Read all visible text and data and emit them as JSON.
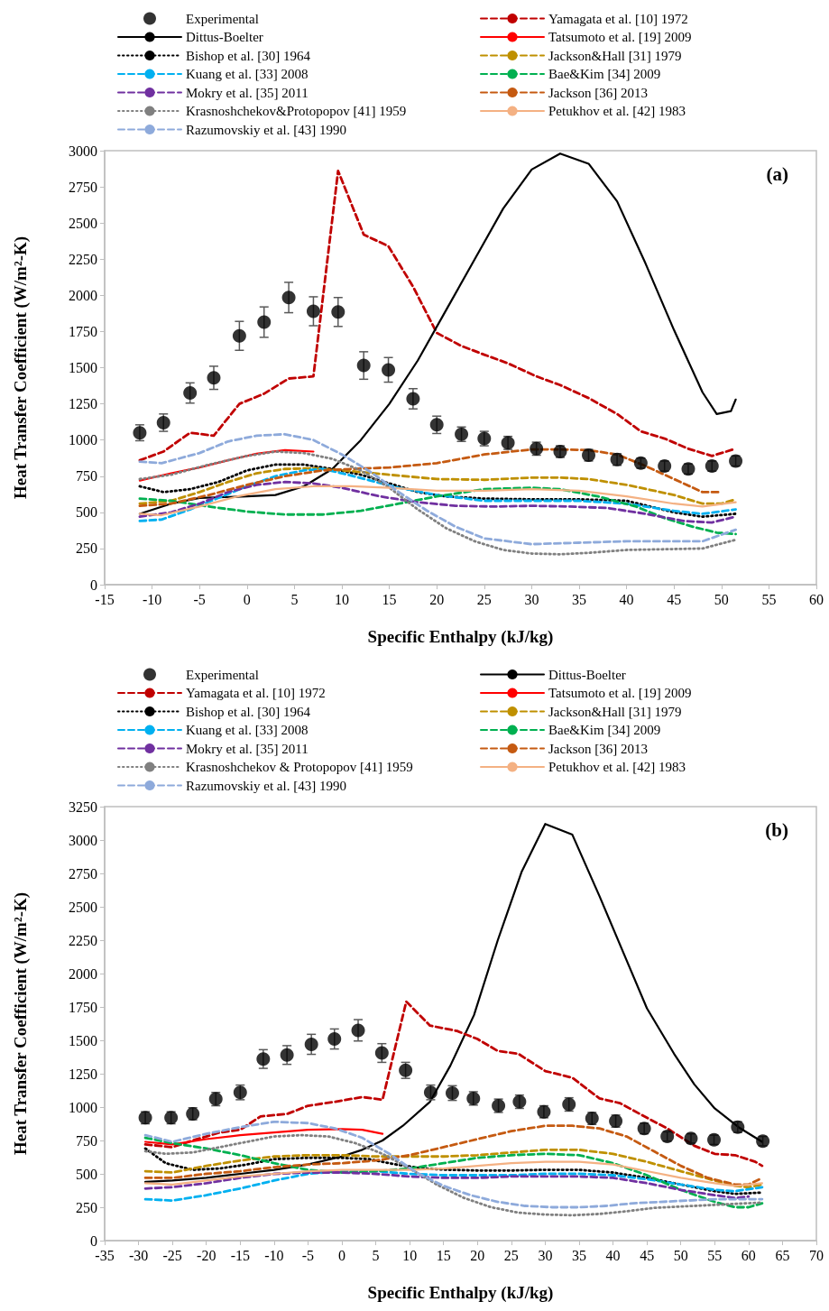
{
  "chart_data": [
    {
      "type": "line",
      "title": "(a)",
      "xlabel": "Specific Enthalpy (kJ/kg)",
      "ylabel": "Heat Transfer Coefficient (W/m²-K)",
      "xlim": [
        -15,
        60
      ],
      "xticks": [
        -15,
        -10,
        -5,
        0,
        5,
        10,
        15,
        20,
        25,
        30,
        35,
        40,
        45,
        50,
        55,
        60
      ],
      "ylim": [
        0,
        3000
      ],
      "yticks": [
        0,
        250,
        500,
        750,
        1000,
        1250,
        1500,
        1750,
        2000,
        2250,
        2500,
        2750,
        3000
      ],
      "grid": false,
      "legend": "top",
      "series": [
        {
          "name": "Experimental",
          "type": "scatter",
          "marker": "circle",
          "color": "#000000",
          "x": [
            -11.3,
            -8.8,
            -6,
            -3.5,
            -0.8,
            1.8,
            4.4,
            7,
            9.6,
            12.3,
            14.9,
            17.5,
            20,
            22.6,
            25,
            27.5,
            30.5,
            33,
            36,
            39,
            41.5,
            44,
            46.5,
            49,
            51.5
          ],
          "values": [
            1050,
            1120,
            1325,
            1430,
            1720,
            1815,
            1985,
            1890,
            1885,
            1515,
            1485,
            1285,
            1105,
            1040,
            1010,
            980,
            940,
            920,
            895,
            865,
            840,
            820,
            800,
            820,
            855
          ],
          "errors": [
            55,
            60,
            70,
            80,
            100,
            105,
            105,
            100,
            100,
            95,
            85,
            70,
            60,
            50,
            50,
            45,
            45,
            40,
            40,
            40,
            35,
            35,
            35,
            35,
            35
          ]
        },
        {
          "name": "Yamagata et al. [10] 1972",
          "color": "#c00000",
          "line_style": "dashed",
          "x": [
            -11.3,
            -8.8,
            -6,
            -3.5,
            -0.8,
            1.8,
            4.4,
            7,
            9.6,
            12.3,
            14.9,
            17.5,
            20,
            22.6,
            25,
            27.5,
            30.5,
            33,
            36,
            39,
            41.5,
            44,
            46.5,
            49,
            51.5
          ],
          "values": [
            860,
            920,
            1050,
            1030,
            1250,
            1320,
            1425,
            1440,
            2860,
            2420,
            2340,
            2060,
            1740,
            1650,
            1590,
            1530,
            1440,
            1380,
            1290,
            1180,
            1060,
            1010,
            940,
            890,
            940
          ]
        },
        {
          "name": "Dittus-Boelter",
          "color": "#000000",
          "line_style": "solid",
          "x": [
            -11.3,
            -8,
            -5,
            0,
            3,
            6,
            9,
            12,
            15,
            18,
            21,
            24,
            27,
            30,
            33,
            36,
            39,
            42,
            45,
            48,
            49.5,
            51,
            51.5
          ],
          "values": [
            490,
            560,
            600,
            610,
            620,
            680,
            800,
            1000,
            1250,
            1550,
            1900,
            2250,
            2600,
            2870,
            2980,
            2910,
            2650,
            2220,
            1760,
            1330,
            1180,
            1200,
            1280
          ]
        },
        {
          "name": "Tatsumoto et al. [19] 2009",
          "color": "#ff0000",
          "line_style": "solid",
          "x": [
            -11.3,
            -8,
            -5,
            -2,
            1,
            4,
            7
          ],
          "values": [
            720,
            770,
            810,
            860,
            905,
            930,
            920
          ]
        },
        {
          "name": "Bishop et al. [30] 1964",
          "color": "#000000",
          "line_style": "dotted",
          "x": [
            -11.3,
            -8.8,
            -6,
            -3,
            0,
            3,
            6,
            9,
            12,
            15,
            18,
            21,
            25,
            30,
            35,
            40,
            45,
            48,
            51.5
          ],
          "values": [
            680,
            640,
            660,
            710,
            790,
            830,
            830,
            800,
            760,
            700,
            640,
            610,
            595,
            590,
            590,
            580,
            500,
            470,
            490
          ]
        },
        {
          "name": "Jackson&Hall [31] 1979",
          "color": "#bf9000",
          "line_style": "dashed",
          "x": [
            -11.3,
            -8,
            -5,
            -2,
            1,
            4,
            7,
            10,
            15,
            20,
            25,
            30,
            33,
            36,
            40,
            45,
            48,
            50,
            51.5
          ],
          "values": [
            560,
            580,
            640,
            710,
            770,
            800,
            805,
            790,
            760,
            730,
            725,
            740,
            740,
            730,
            690,
            620,
            560,
            560,
            590
          ]
        },
        {
          "name": "Kuang et al. [33] 2008",
          "color": "#00b0f0",
          "line_style": "dashed",
          "x": [
            -11.3,
            -9,
            -6,
            -3,
            0,
            3,
            6,
            8,
            10,
            13,
            16,
            20,
            25,
            30,
            35,
            40,
            45,
            48,
            51.5
          ],
          "values": [
            440,
            450,
            520,
            600,
            680,
            750,
            790,
            800,
            770,
            720,
            670,
            620,
            580,
            580,
            580,
            560,
            510,
            490,
            520
          ]
        },
        {
          "name": "Bae&Kim [34] 2009",
          "color": "#00b050",
          "line_style": "dashed",
          "x": [
            -11.3,
            -8,
            -4,
            0,
            4,
            8,
            12,
            16,
            20,
            25,
            30,
            33,
            37,
            41,
            44,
            47,
            49.5,
            51.5
          ],
          "values": [
            595,
            580,
            540,
            505,
            485,
            485,
            510,
            560,
            610,
            660,
            670,
            660,
            610,
            540,
            460,
            400,
            360,
            350
          ]
        },
        {
          "name": "Mokry et al. [35] 2011",
          "color": "#7030a0",
          "line_style": "dashed",
          "x": [
            -11.3,
            -8,
            -5,
            -2,
            1,
            4,
            7,
            10,
            14,
            18,
            22,
            26,
            30,
            34,
            38,
            42,
            46,
            49,
            51.5
          ],
          "values": [
            470,
            500,
            560,
            640,
            690,
            710,
            700,
            670,
            610,
            570,
            545,
            540,
            545,
            540,
            530,
            490,
            440,
            430,
            470
          ]
        },
        {
          "name": "Jackson [36] 2013",
          "color": "#c55a11",
          "line_style": "dashed",
          "x": [
            -11.3,
            -8,
            -4,
            0,
            4,
            8,
            11,
            15,
            20,
            25,
            30,
            33,
            36,
            39,
            42,
            45,
            48,
            50
          ],
          "values": [
            545,
            560,
            620,
            690,
            750,
            790,
            800,
            810,
            840,
            900,
            935,
            935,
            930,
            900,
            820,
            730,
            640,
            640
          ]
        },
        {
          "name": "Krasnoshchekov&Protopopov [41] 1959",
          "color": "#808080",
          "line_style": "dotted",
          "x": [
            -11.3,
            -8,
            -4,
            0,
            3,
            6,
            9,
            12,
            15,
            18,
            21,
            24,
            27,
            30,
            33,
            36,
            40,
            44,
            48,
            51.5
          ],
          "values": [
            730,
            760,
            830,
            890,
            920,
            910,
            870,
            790,
            670,
            520,
            390,
            300,
            240,
            215,
            210,
            220,
            240,
            245,
            250,
            310
          ]
        },
        {
          "name": "Petukhov et al. [42] 1983",
          "color": "#f4b183",
          "line_style": "solid",
          "x": [
            -11.3,
            -9,
            -5,
            -1,
            3,
            7,
            11,
            15,
            20,
            25,
            30,
            35,
            40,
            45,
            48,
            51.5
          ],
          "values": [
            490,
            480,
            540,
            610,
            660,
            680,
            680,
            670,
            650,
            650,
            660,
            650,
            610,
            560,
            540,
            570
          ]
        },
        {
          "name": "Razumovskiy et al. [43] 1990",
          "color": "#8eaadb",
          "line_style": "dashed",
          "x": [
            -11.3,
            -9,
            -5,
            -2,
            1,
            4,
            7,
            10,
            13,
            16,
            19,
            22,
            25,
            30,
            35,
            40,
            45,
            48,
            51.5
          ],
          "values": [
            850,
            840,
            910,
            990,
            1030,
            1040,
            1000,
            900,
            780,
            640,
            510,
            400,
            320,
            280,
            290,
            300,
            300,
            300,
            380
          ]
        }
      ]
    },
    {
      "type": "line",
      "title": "(b)",
      "xlabel": "Specific Enthalpy (kJ/kg)",
      "ylabel": "Heat Transfer Coefficient (W/m²-K)",
      "xlim": [
        -35,
        70
      ],
      "xticks": [
        -35,
        -30,
        -25,
        -20,
        -15,
        -10,
        -5,
        0,
        5,
        10,
        15,
        20,
        25,
        30,
        35,
        40,
        45,
        50,
        55,
        60,
        65,
        70
      ],
      "ylim": [
        0,
        3250
      ],
      "yticks": [
        0,
        250,
        500,
        750,
        1000,
        1250,
        1500,
        1750,
        2000,
        2250,
        2500,
        2750,
        3000,
        3250
      ],
      "grid": false,
      "legend": "top",
      "series": [
        {
          "name": "Experimental",
          "type": "scatter",
          "marker": "circle",
          "color": "#000000",
          "x": [
            -29,
            -25.2,
            -22,
            -18.6,
            -15,
            -11.6,
            -8.1,
            -4.5,
            -1.1,
            2.4,
            5.9,
            9.4,
            13.1,
            16.3,
            19.4,
            23.1,
            26.2,
            29.8,
            33.5,
            36.9,
            40.4,
            44.6,
            48,
            51.5,
            54.9,
            58.4,
            62.1
          ],
          "values": [
            920,
            920,
            950,
            1060,
            1110,
            1360,
            1390,
            1470,
            1510,
            1575,
            1405,
            1275,
            1110,
            1105,
            1065,
            1010,
            1040,
            965,
            1020,
            915,
            895,
            840,
            780,
            765,
            755,
            850,
            745
          ],
          "errors": [
            45,
            45,
            45,
            50,
            55,
            70,
            70,
            75,
            75,
            80,
            70,
            60,
            55,
            55,
            50,
            50,
            50,
            45,
            50,
            45,
            45,
            40,
            35,
            35,
            35,
            40,
            35
          ]
        },
        {
          "name": "Dittus-Boelter",
          "color": "#000000",
          "line_style": "solid",
          "x": [
            -29,
            -25,
            -20,
            -15,
            -10,
            -5,
            0,
            3,
            6,
            9,
            13,
            16,
            19.5,
            23,
            26.5,
            30,
            34,
            38,
            41.5,
            45,
            49,
            52,
            55,
            58.5,
            62
          ],
          "values": [
            440,
            450,
            470,
            500,
            530,
            570,
            630,
            680,
            750,
            860,
            1040,
            1310,
            1690,
            2250,
            2760,
            3120,
            3040,
            2580,
            2160,
            1740,
            1400,
            1170,
            990,
            850,
            740
          ]
        },
        {
          "name": "Yamagata et al. [10] 1972",
          "color": "#c00000",
          "line_style": "dashed",
          "x": [
            -29,
            -25,
            -22,
            -18,
            -15,
            -12,
            -8,
            -5,
            -1,
            3,
            6,
            9.5,
            13,
            17,
            20,
            23,
            26,
            30,
            34,
            38,
            41,
            45,
            48,
            52,
            55,
            58,
            61,
            62
          ],
          "values": [
            720,
            700,
            750,
            810,
            830,
            930,
            950,
            1010,
            1040,
            1075,
            1055,
            1790,
            1610,
            1570,
            1510,
            1420,
            1400,
            1270,
            1220,
            1065,
            1030,
            920,
            840,
            710,
            650,
            640,
            590,
            560
          ]
        },
        {
          "name": "Tatsumoto et al. [19] 2009",
          "color": "#ff0000",
          "line_style": "solid",
          "x": [
            -29,
            -25,
            -20,
            -15,
            -10,
            -5,
            0,
            3,
            6
          ],
          "values": [
            740,
            720,
            760,
            790,
            810,
            830,
            835,
            830,
            800
          ]
        },
        {
          "name": "Bishop et al. [30] 1964",
          "color": "#000000",
          "line_style": "dotted",
          "x": [
            -29,
            -26,
            -22,
            -18,
            -14,
            -10,
            -5,
            0,
            4,
            8,
            12,
            16,
            20,
            25,
            30,
            35,
            40,
            45,
            50,
            55,
            58,
            62
          ],
          "values": [
            690,
            580,
            530,
            540,
            570,
            610,
            620,
            620,
            610,
            570,
            540,
            530,
            525,
            525,
            530,
            530,
            510,
            470,
            420,
            370,
            350,
            360
          ]
        },
        {
          "name": "Jackson&Hall [31] 1979",
          "color": "#bf9000",
          "line_style": "dashed",
          "x": [
            -29,
            -25,
            -20,
            -15,
            -10,
            -5,
            0,
            5,
            10,
            15,
            20,
            25,
            30,
            35,
            40,
            45,
            50,
            55,
            58,
            60,
            62
          ],
          "values": [
            520,
            510,
            560,
            600,
            630,
            640,
            640,
            630,
            630,
            630,
            640,
            660,
            680,
            680,
            650,
            590,
            520,
            450,
            410,
            400,
            420
          ]
        },
        {
          "name": "Kuang et al. [33] 2008",
          "color": "#00b0f0",
          "line_style": "dashed",
          "x": [
            -29,
            -25,
            -20,
            -15,
            -10,
            -5,
            0,
            5,
            10,
            15,
            20,
            25,
            30,
            35,
            40,
            45,
            50,
            55,
            58,
            62
          ],
          "values": [
            310,
            300,
            340,
            390,
            450,
            500,
            520,
            520,
            500,
            490,
            490,
            490,
            500,
            500,
            490,
            460,
            420,
            380,
            370,
            400
          ]
        },
        {
          "name": "Bae&Kim [34] 2009",
          "color": "#00b050",
          "line_style": "dashed",
          "x": [
            -29,
            -25,
            -20,
            -15,
            -10,
            -5,
            0,
            5,
            10,
            15,
            20,
            25,
            30,
            35,
            40,
            45,
            50,
            55,
            58,
            60,
            62
          ],
          "values": [
            770,
            730,
            690,
            640,
            580,
            530,
            510,
            520,
            540,
            580,
            620,
            640,
            650,
            640,
            580,
            490,
            380,
            290,
            250,
            250,
            280
          ]
        },
        {
          "name": "Mokry et al. [35] 2011",
          "color": "#7030a0",
          "line_style": "dashed",
          "x": [
            -29,
            -25,
            -20,
            -15,
            -10,
            -5,
            0,
            5,
            10,
            15,
            20,
            25,
            30,
            35,
            40,
            45,
            50,
            55,
            58,
            60
          ],
          "values": [
            390,
            400,
            430,
            470,
            500,
            510,
            510,
            500,
            480,
            470,
            470,
            480,
            480,
            480,
            470,
            430,
            380,
            340,
            320,
            330
          ]
        },
        {
          "name": "Jackson [36] 2013",
          "color": "#c55a11",
          "line_style": "dashed",
          "x": [
            -29,
            -25,
            -20,
            -15,
            -10,
            -5,
            0,
            5,
            10,
            15,
            20,
            25,
            30,
            34,
            38,
            42,
            46,
            50,
            54,
            58,
            60,
            62
          ],
          "values": [
            470,
            470,
            500,
            520,
            550,
            570,
            580,
            600,
            640,
            700,
            760,
            820,
            860,
            860,
            840,
            780,
            670,
            560,
            470,
            420,
            420,
            470
          ]
        },
        {
          "name": "Krasnoshchekov & Protopopov [41] 1959",
          "color": "#808080",
          "line_style": "dotted",
          "x": [
            -29,
            -26,
            -22,
            -18,
            -14,
            -10,
            -6,
            -2,
            2,
            6,
            10,
            14,
            18,
            22,
            26,
            30,
            34,
            38,
            42,
            46,
            50,
            54,
            58,
            62
          ],
          "values": [
            670,
            650,
            660,
            700,
            740,
            780,
            790,
            780,
            730,
            650,
            540,
            420,
            320,
            250,
            210,
            195,
            190,
            200,
            220,
            245,
            255,
            265,
            275,
            285
          ]
        },
        {
          "name": "Petukhov et al. [42] 1983",
          "color": "#f4b183",
          "line_style": "solid",
          "x": [
            -29,
            -25,
            -20,
            -15,
            -10,
            -5,
            0,
            5,
            10,
            15,
            20,
            25,
            30,
            35,
            40,
            45,
            50,
            55,
            58,
            62
          ],
          "values": [
            430,
            420,
            450,
            480,
            500,
            520,
            530,
            530,
            530,
            540,
            560,
            580,
            590,
            590,
            570,
            520,
            470,
            430,
            410,
            430
          ]
        },
        {
          "name": "Razumovskiy et al. [43] 1990",
          "color": "#8eaadb",
          "line_style": "dashed",
          "x": [
            -29,
            -25,
            -20,
            -15,
            -10,
            -5,
            -1,
            3,
            7,
            11,
            15,
            19,
            23,
            27,
            31,
            35,
            39,
            43,
            47,
            51,
            55,
            58,
            62
          ],
          "values": [
            790,
            740,
            800,
            850,
            890,
            880,
            840,
            770,
            650,
            510,
            410,
            340,
            290,
            260,
            250,
            250,
            260,
            280,
            290,
            300,
            310,
            310,
            310
          ]
        }
      ]
    }
  ]
}
